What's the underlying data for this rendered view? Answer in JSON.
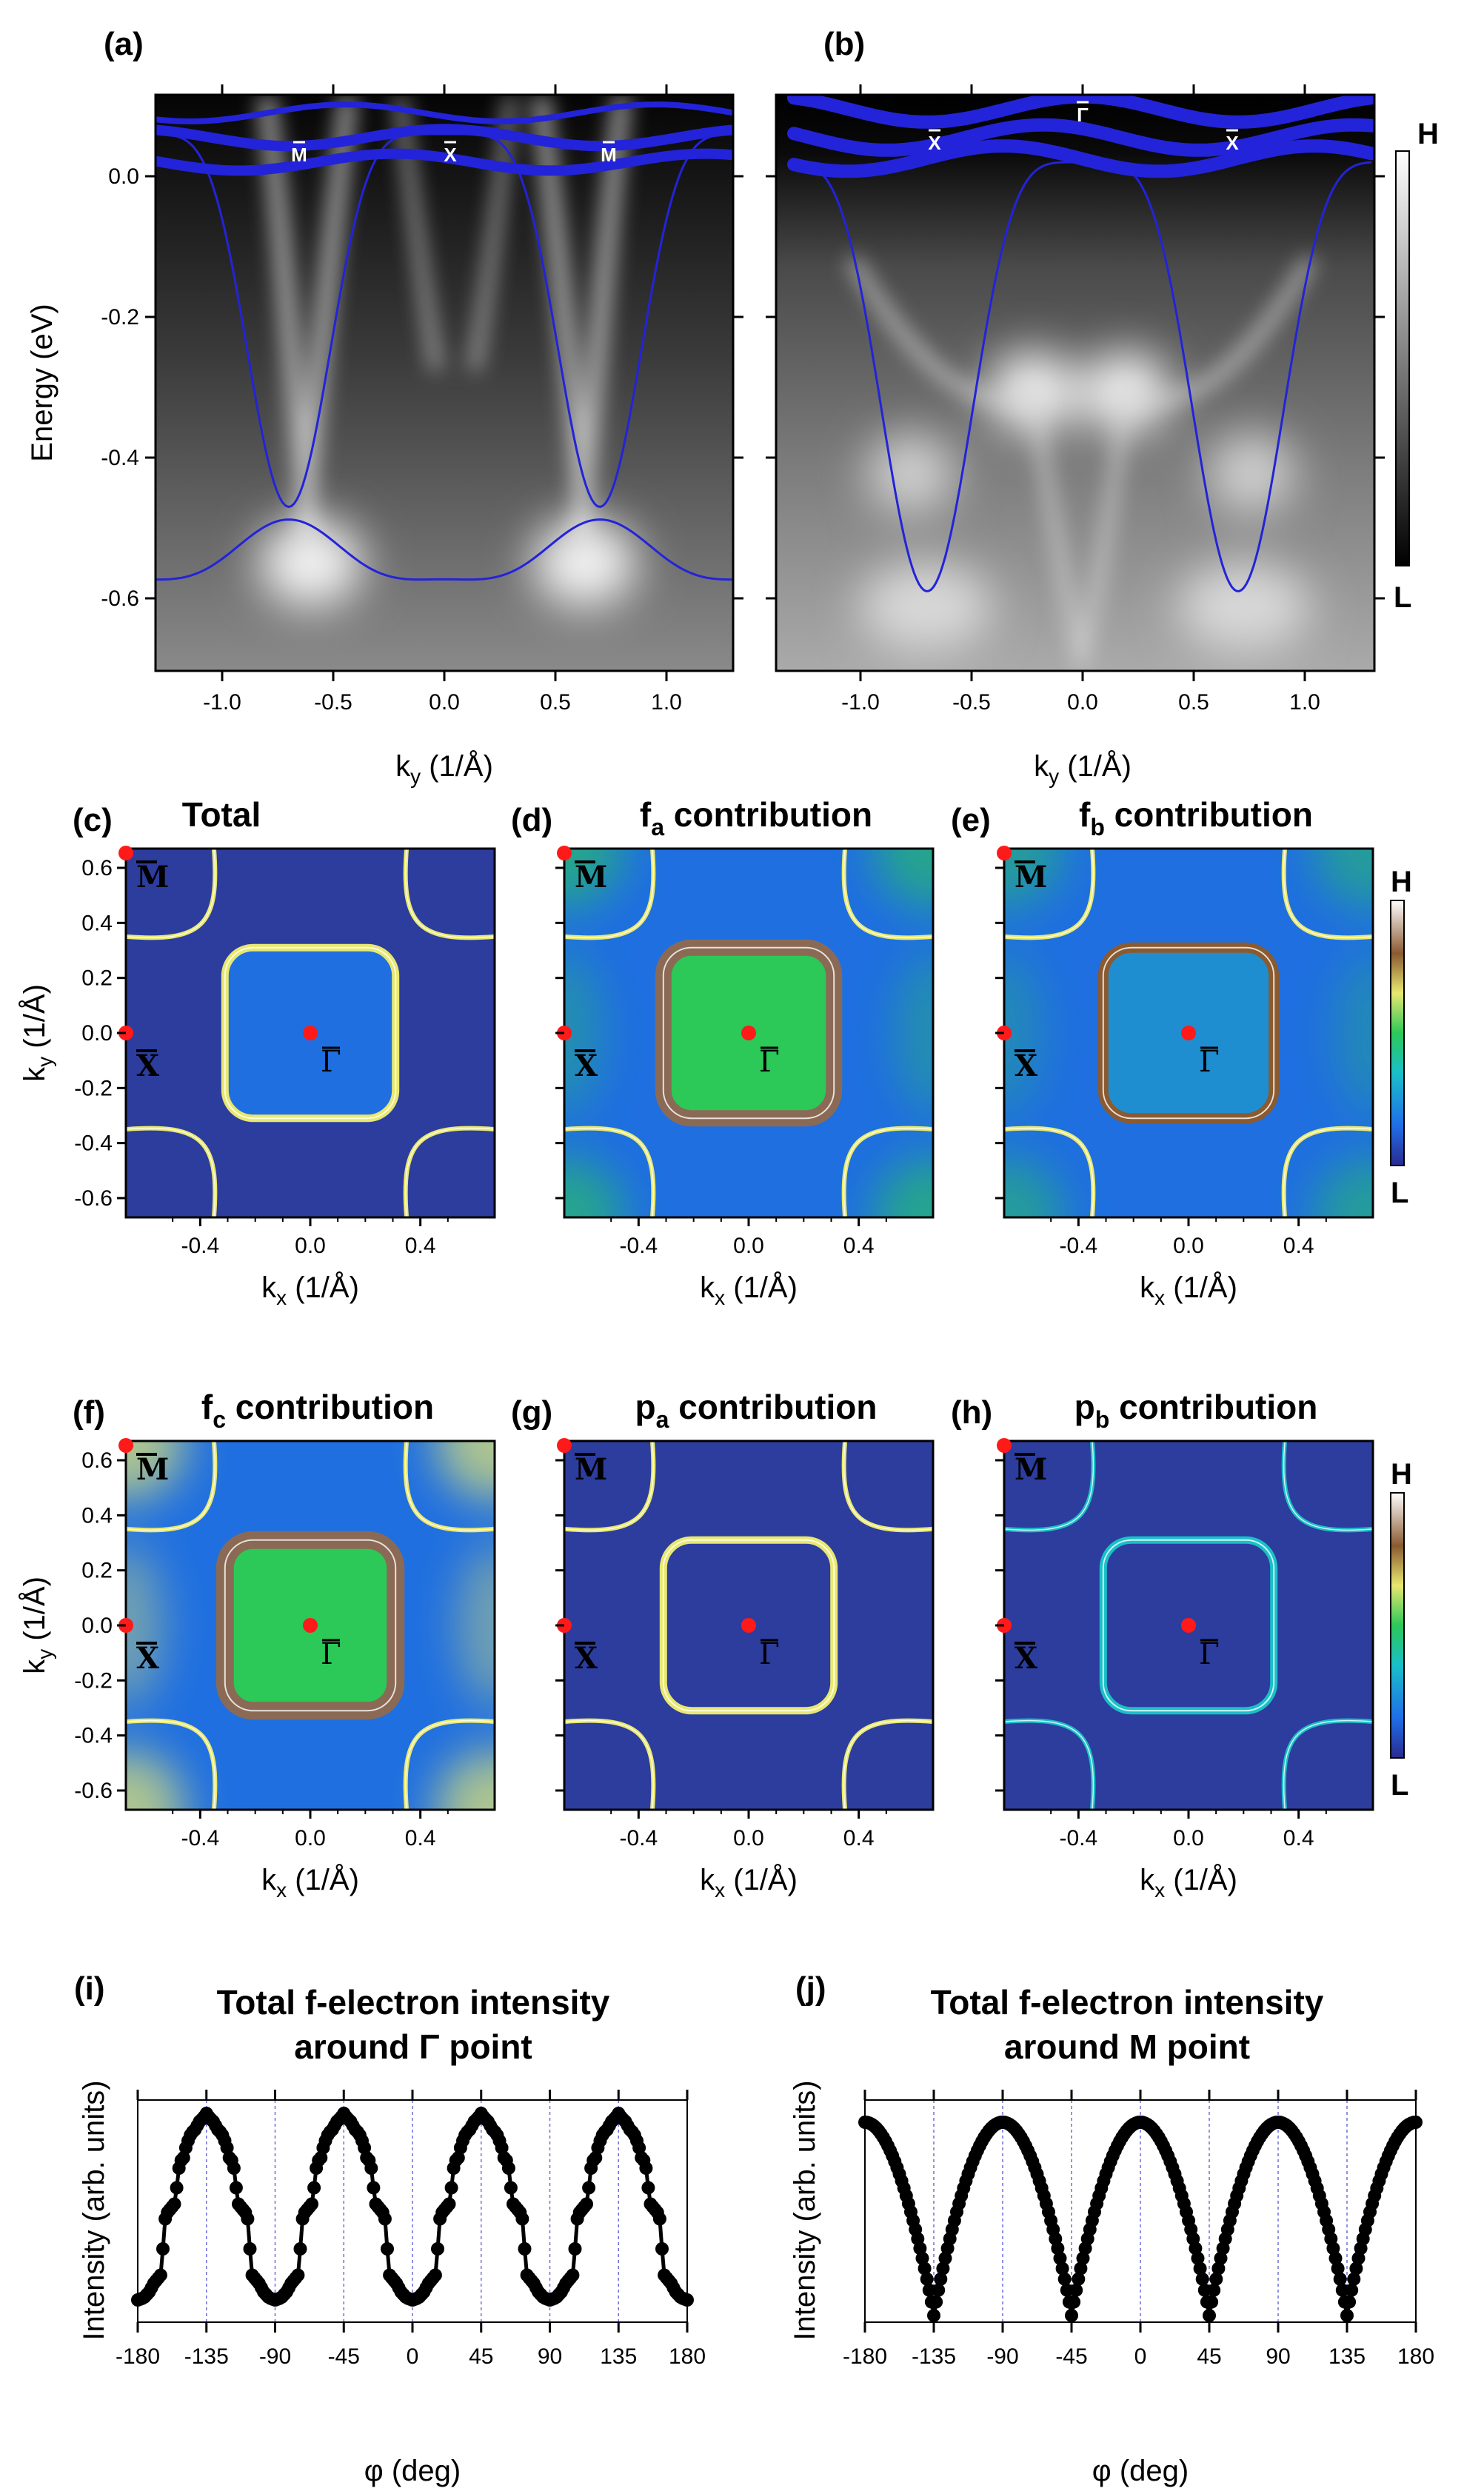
{
  "arpes": {
    "panels": [
      {
        "id": "a",
        "label": "(a)",
        "xlabel": "k",
        "xsub": "y",
        "xunit": " (1/Å)",
        "ylabel": "Energy (eV)",
        "xticks": [
          "-1.0",
          "-0.5",
          "0.0",
          "0.5",
          "1.0"
        ],
        "yticks": [
          "0.0",
          "-0.2",
          "-0.4",
          "-0.6"
        ],
        "points": [
          "M",
          "X",
          "M"
        ]
      },
      {
        "id": "b",
        "label": "(b)",
        "xlabel": "k",
        "xsub": "y",
        "xunit": " (1/Å)",
        "xticks": [
          "-1.0",
          "-0.5",
          "0.0",
          "0.5",
          "1.0"
        ],
        "points": [
          "X",
          "Γ",
          "X"
        ]
      }
    ],
    "colorbar": {
      "high": "H",
      "low": "L"
    },
    "band_color": "#2323d9"
  },
  "fermi_maps": {
    "panels": [
      {
        "id": "c",
        "label": "(c)",
        "title": "Total",
        "sub": ""
      },
      {
        "id": "d",
        "label": "(d)",
        "title": "f",
        "sub": "a",
        "suffix": " contribution"
      },
      {
        "id": "e",
        "label": "(e)",
        "title": "f",
        "sub": "b",
        "suffix": " contribution"
      },
      {
        "id": "f",
        "label": "(f)",
        "title": "f",
        "sub": "c",
        "suffix": " contribution"
      },
      {
        "id": "g",
        "label": "(g)",
        "title": "p",
        "sub": "a",
        "suffix": " contribution"
      },
      {
        "id": "h",
        "label": "(h)",
        "title": "p",
        "sub": "b",
        "suffix": " contribution"
      }
    ],
    "xlabel": "k",
    "xsub": "x",
    "xunit": " (1/Å)",
    "ylabel": "k",
    "ysub": "y",
    "yunit": " (1/Å)",
    "xticks": [
      "-0.4",
      "0.0",
      "0.4"
    ],
    "yticks": [
      "0.6",
      "0.4",
      "0.2",
      "0.0",
      "-0.2",
      "-0.4",
      "-0.6"
    ],
    "points": {
      "M": "M",
      "X": "X",
      "G": "Γ"
    },
    "colorbar": {
      "high": "H",
      "low": "L"
    },
    "marker_color": "#ff1a1a"
  },
  "chart_data": [
    {
      "id": "i",
      "type": "scatter",
      "label": "(i)",
      "title": "Total f-electron intensity",
      "title2": "around Γ point",
      "xlabel": "φ (deg)",
      "ylabel": "Intensity (arb. units)",
      "xlim": [
        -180,
        180
      ],
      "ylim": [
        0,
        1
      ],
      "xticks": [
        "-180",
        "-135",
        "-90",
        "-45",
        "0",
        "45",
        "90",
        "135",
        "180"
      ],
      "grid_x": [
        -180,
        -135,
        -90,
        -45,
        0,
        45,
        90,
        135,
        180
      ],
      "profile_phi": [
        0,
        4,
        8,
        10,
        16,
        17,
        19,
        25,
        26,
        29,
        30,
        32,
        35,
        38,
        40,
        43,
        45
      ],
      "profile_val": [
        0.1,
        0.11,
        0.14,
        0.17,
        0.22,
        0.44,
        0.49,
        0.54,
        0.67,
        0.74,
        0.74,
        0.8,
        0.85,
        0.87,
        0.9,
        0.92,
        0.94
      ],
      "period": 90
    },
    {
      "id": "j",
      "type": "scatter",
      "label": "(j)",
      "title": "Total f-electron intensity",
      "title2": "around M point",
      "xlabel": "φ (deg)",
      "ylabel": "Intensity (arb. units)",
      "xlim": [
        -180,
        180
      ],
      "ylim": [
        0,
        1
      ],
      "xticks": [
        "-180",
        "-135",
        "-90",
        "-45",
        "0",
        "45",
        "90",
        "135",
        "180"
      ],
      "grid_x": [
        -180,
        -135,
        -90,
        -45,
        0,
        45,
        90,
        135,
        180
      ],
      "peak": 0.9,
      "valley": 0.03,
      "period": 90
    }
  ]
}
